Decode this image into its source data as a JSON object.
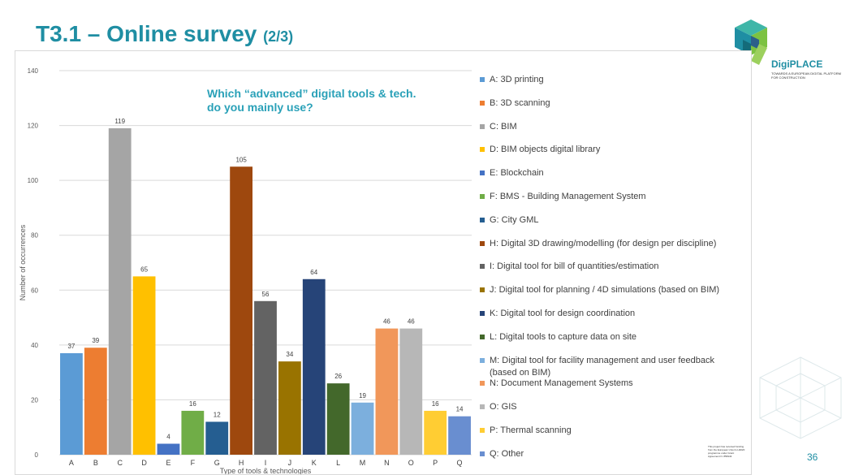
{
  "slide": {
    "title": "T3.1 – Online survey",
    "title_suffix": "(2/3)",
    "page_number": "36"
  },
  "logo": {
    "name": "DigiPLACE",
    "tagline": "TOWARDS A EUROPEAN DIGITAL PLATFORM FOR CONSTRUCTION"
  },
  "funding_note": "This project has received funding from the European Union's H2020 programme under Grant Agreement N. 856943",
  "colors": {
    "title": "#1f8ea3",
    "question": "#2aa1b8"
  },
  "chart_data": {
    "type": "bar",
    "title": "Which “advanced” digital tools & tech.\ndo you mainly use?",
    "xlabel": "Type of tools & technologies",
    "ylabel": "Number of occurrences",
    "ylim": [
      0,
      140
    ],
    "yticks": [
      0,
      20,
      40,
      60,
      80,
      100,
      120,
      140
    ],
    "grid": true,
    "legend_position": "right",
    "categories": [
      "A",
      "B",
      "C",
      "D",
      "E",
      "F",
      "G",
      "H",
      "I",
      "J",
      "K",
      "L",
      "M",
      "N",
      "O",
      "P",
      "Q"
    ],
    "values": [
      37,
      39,
      119,
      65,
      4,
      16,
      12,
      105,
      56,
      34,
      64,
      26,
      19,
      46,
      46,
      16,
      14
    ],
    "bar_colors": [
      "#5b9bd5",
      "#ed7d31",
      "#a5a5a5",
      "#ffc000",
      "#4472c4",
      "#70ad47",
      "#255e91",
      "#9e480e",
      "#636363",
      "#997300",
      "#264478",
      "#43682b",
      "#7cafdd",
      "#f1975a",
      "#b7b7b7",
      "#ffcd33",
      "#698ed0"
    ],
    "legend": [
      "A: 3D printing",
      "B: 3D scanning",
      "C: BIM",
      "D: BIM objects digital library",
      "E: Blockchain",
      "F: BMS - Building Management System",
      "G: City GML",
      "H: Digital 3D drawing/modelling (for design per discipline)",
      "I: Digital tool for bill of quantities/estimation",
      "J: Digital tool for planning / 4D simulations (based on BIM)",
      "K: Digital tool for design coordination",
      "L: Digital tools to capture data on site",
      "M: Digital tool for facility management and user feedback (based on BIM)",
      "N: Document Management Systems",
      "O: GIS",
      "P: Thermal scanning",
      "Q: Other"
    ]
  }
}
